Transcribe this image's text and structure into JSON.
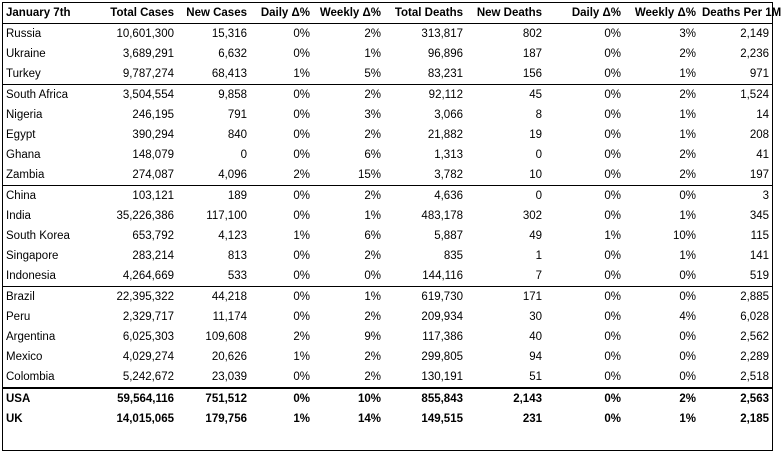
{
  "table": {
    "corner_label": "January 7th",
    "columns": [
      "Total Cases",
      "New Cases",
      "Daily Δ%",
      "Weekly Δ%",
      "Total Deaths",
      "New Deaths",
      "Daily Δ%",
      "Weekly Δ%",
      "Deaths Per 1M"
    ],
    "rows": [
      {
        "country": "Russia",
        "values": [
          "10,601,300",
          "15,316",
          "0%",
          "2%",
          "313,817",
          "802",
          "0%",
          "3%",
          "2,149"
        ]
      },
      {
        "country": "Ukraine",
        "values": [
          "3,689,291",
          "6,632",
          "0%",
          "1%",
          "96,896",
          "187",
          "0%",
          "2%",
          "2,236"
        ]
      },
      {
        "country": "Turkey",
        "values": [
          "9,787,274",
          "68,413",
          "1%",
          "5%",
          "83,231",
          "156",
          "0%",
          "1%",
          "971"
        ]
      },
      {
        "country": "South Africa",
        "values": [
          "3,504,554",
          "9,858",
          "0%",
          "2%",
          "92,112",
          "45",
          "0%",
          "2%",
          "1,524"
        ]
      },
      {
        "country": "Nigeria",
        "values": [
          "246,195",
          "791",
          "0%",
          "3%",
          "3,066",
          "8",
          "0%",
          "1%",
          "14"
        ]
      },
      {
        "country": "Egypt",
        "values": [
          "390,294",
          "840",
          "0%",
          "2%",
          "21,882",
          "19",
          "0%",
          "1%",
          "208"
        ]
      },
      {
        "country": "Ghana",
        "values": [
          "148,079",
          "0",
          "0%",
          "6%",
          "1,313",
          "0",
          "0%",
          "2%",
          "41"
        ]
      },
      {
        "country": "Zambia",
        "values": [
          "274,087",
          "4,096",
          "2%",
          "15%",
          "3,782",
          "10",
          "0%",
          "2%",
          "197"
        ]
      },
      {
        "country": "China",
        "values": [
          "103,121",
          "189",
          "0%",
          "2%",
          "4,636",
          "0",
          "0%",
          "0%",
          "3"
        ]
      },
      {
        "country": "India",
        "values": [
          "35,226,386",
          "117,100",
          "0%",
          "1%",
          "483,178",
          "302",
          "0%",
          "1%",
          "345"
        ]
      },
      {
        "country": "South Korea",
        "values": [
          "653,792",
          "4,123",
          "1%",
          "6%",
          "5,887",
          "49",
          "1%",
          "10%",
          "115"
        ]
      },
      {
        "country": "Singapore",
        "values": [
          "283,214",
          "813",
          "0%",
          "2%",
          "835",
          "1",
          "0%",
          "1%",
          "141"
        ]
      },
      {
        "country": "Indonesia",
        "values": [
          "4,264,669",
          "533",
          "0%",
          "0%",
          "144,116",
          "7",
          "0%",
          "0%",
          "519"
        ]
      },
      {
        "country": "Brazil",
        "values": [
          "22,395,322",
          "44,218",
          "0%",
          "1%",
          "619,730",
          "171",
          "0%",
          "0%",
          "2,885"
        ]
      },
      {
        "country": "Peru",
        "values": [
          "2,329,717",
          "11,174",
          "0%",
          "2%",
          "209,934",
          "30",
          "0%",
          "4%",
          "6,028"
        ]
      },
      {
        "country": "Argentina",
        "values": [
          "6,025,303",
          "109,608",
          "2%",
          "9%",
          "117,386",
          "40",
          "0%",
          "0%",
          "2,562"
        ]
      },
      {
        "country": "Mexico",
        "values": [
          "4,029,274",
          "20,626",
          "1%",
          "2%",
          "299,805",
          "94",
          "0%",
          "0%",
          "2,289"
        ]
      },
      {
        "country": "Colombia",
        "values": [
          "5,242,672",
          "23,039",
          "0%",
          "2%",
          "130,191",
          "51",
          "0%",
          "0%",
          "2,518"
        ]
      }
    ],
    "totals": [
      {
        "country": "USA",
        "values": [
          "59,564,116",
          "751,512",
          "0%",
          "10%",
          "855,843",
          "2,143",
          "0%",
          "2%",
          "2,563"
        ]
      },
      {
        "country": "UK",
        "values": [
          "14,015,065",
          "179,756",
          "1%",
          "14%",
          "149,515",
          "231",
          "0%",
          "1%",
          "2,185"
        ]
      }
    ]
  }
}
